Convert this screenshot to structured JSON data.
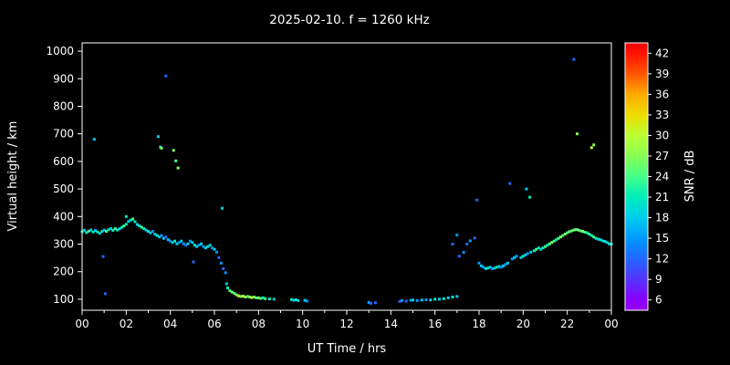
{
  "title": "2025-02-10. f = 1260 kHz",
  "chart_data": {
    "type": "scatter",
    "title": "2025-02-10. f = 1260 kHz",
    "xlabel": "UT Time / hrs",
    "ylabel": "Virtual height / km",
    "xlim": [
      0,
      24
    ],
    "ylim": [
      60,
      1030
    ],
    "xticks": [
      0,
      2,
      4,
      6,
      8,
      10,
      12,
      14,
      16,
      18,
      20,
      22,
      24
    ],
    "xtick_labels": [
      "00",
      "02",
      "04",
      "06",
      "08",
      "10",
      "12",
      "14",
      "16",
      "18",
      "20",
      "22",
      "00"
    ],
    "xminor": [
      1,
      3,
      5,
      7,
      9,
      11,
      13,
      15,
      17,
      19,
      21,
      23
    ],
    "yticks": [
      100,
      200,
      300,
      400,
      500,
      600,
      700,
      800,
      900,
      1000
    ],
    "background": "#000000",
    "axis_color": "#ffffff",
    "legend_position": "right-colorbar",
    "grid": false,
    "colorbar": {
      "label": "SNR / dB",
      "range": [
        4.5,
        43.5
      ],
      "ticks": [
        6,
        9,
        12,
        15,
        18,
        21,
        24,
        27,
        30,
        33,
        36,
        39,
        42
      ],
      "stops": [
        {
          "v": 4.5,
          "c": "#9900ee"
        },
        {
          "v": 6,
          "c": "#8800ff"
        },
        {
          "v": 9,
          "c": "#5533ff"
        },
        {
          "v": 12,
          "c": "#2266ff"
        },
        {
          "v": 15,
          "c": "#0099ff"
        },
        {
          "v": 18,
          "c": "#00ccee"
        },
        {
          "v": 21,
          "c": "#00eebb"
        },
        {
          "v": 24,
          "c": "#44ff88"
        },
        {
          "v": 27,
          "c": "#88ff55"
        },
        {
          "v": 30,
          "c": "#bbff33"
        },
        {
          "v": 33,
          "c": "#eedd00"
        },
        {
          "v": 36,
          "c": "#ffaa00"
        },
        {
          "v": 39,
          "c": "#ff5500"
        },
        {
          "v": 42,
          "c": "#ff1100"
        },
        {
          "v": 43.5,
          "c": "#ee0000"
        }
      ]
    },
    "points": [
      [
        0.0,
        345,
        21
      ],
      [
        0.1,
        350,
        18
      ],
      [
        0.2,
        342,
        21
      ],
      [
        0.3,
        347,
        24
      ],
      [
        0.4,
        351,
        18
      ],
      [
        0.5,
        344,
        21
      ],
      [
        0.55,
        680,
        18
      ],
      [
        0.6,
        349,
        18
      ],
      [
        0.7,
        344,
        21
      ],
      [
        0.8,
        339,
        18
      ],
      [
        0.9,
        346,
        21
      ],
      [
        0.95,
        255,
        12
      ],
      [
        1.05,
        120,
        12
      ],
      [
        1.0,
        351,
        18
      ],
      [
        1.1,
        346,
        24
      ],
      [
        1.2,
        352,
        21
      ],
      [
        1.3,
        356,
        18
      ],
      [
        1.4,
        350,
        21
      ],
      [
        1.5,
        356,
        24
      ],
      [
        1.6,
        351,
        21
      ],
      [
        1.7,
        356,
        18
      ],
      [
        1.8,
        361,
        21
      ],
      [
        1.9,
        366,
        24
      ],
      [
        2.0,
        372,
        21
      ],
      [
        2.0,
        400,
        21
      ],
      [
        2.1,
        382,
        18
      ],
      [
        2.2,
        387,
        21
      ],
      [
        2.3,
        391,
        24
      ],
      [
        2.4,
        381,
        21
      ],
      [
        2.5,
        371,
        18
      ],
      [
        2.6,
        366,
        21
      ],
      [
        2.7,
        361,
        24
      ],
      [
        2.8,
        356,
        21
      ],
      [
        2.9,
        351,
        18
      ],
      [
        3.0,
        346,
        21
      ],
      [
        3.1,
        341,
        18
      ],
      [
        3.2,
        346,
        15
      ],
      [
        3.3,
        336,
        18
      ],
      [
        3.4,
        331,
        21
      ],
      [
        3.45,
        690,
        18
      ],
      [
        3.55,
        652,
        21
      ],
      [
        3.6,
        648,
        27
      ],
      [
        3.5,
        326,
        18
      ],
      [
        3.6,
        331,
        15
      ],
      [
        3.7,
        321,
        18
      ],
      [
        3.8,
        910,
        12
      ],
      [
        3.8,
        326,
        12
      ],
      [
        3.9,
        316,
        18
      ],
      [
        4.0,
        311,
        15
      ],
      [
        4.1,
        306,
        18
      ],
      [
        4.15,
        640,
        27
      ],
      [
        4.25,
        602,
        24
      ],
      [
        4.35,
        576,
        27
      ],
      [
        4.2,
        311,
        21
      ],
      [
        4.3,
        301,
        18
      ],
      [
        4.4,
        306,
        15
      ],
      [
        4.5,
        311,
        18
      ],
      [
        4.6,
        301,
        15
      ],
      [
        4.7,
        296,
        12
      ],
      [
        4.8,
        301,
        18
      ],
      [
        4.9,
        311,
        15
      ],
      [
        5.0,
        306,
        18
      ],
      [
        5.05,
        235,
        12
      ],
      [
        5.1,
        296,
        21
      ],
      [
        5.2,
        291,
        18
      ],
      [
        5.3,
        296,
        15
      ],
      [
        5.4,
        301,
        18
      ],
      [
        5.5,
        291,
        15
      ],
      [
        5.6,
        286,
        18
      ],
      [
        5.7,
        291,
        21
      ],
      [
        5.8,
        296,
        18
      ],
      [
        5.9,
        286,
        15
      ],
      [
        6.0,
        281,
        18
      ],
      [
        6.1,
        271,
        15
      ],
      [
        6.2,
        251,
        12
      ],
      [
        6.35,
        430,
        18
      ],
      [
        6.3,
        231,
        15
      ],
      [
        6.4,
        211,
        12
      ],
      [
        6.5,
        196,
        15
      ],
      [
        6.55,
        156,
        18
      ],
      [
        6.6,
        141,
        21
      ],
      [
        6.7,
        131,
        24
      ],
      [
        6.8,
        126,
        27
      ],
      [
        6.9,
        121,
        24
      ],
      [
        7.0,
        116,
        27
      ],
      [
        7.1,
        112,
        30
      ],
      [
        7.2,
        110,
        27
      ],
      [
        7.3,
        111,
        30
      ],
      [
        7.4,
        108,
        27
      ],
      [
        7.5,
        110,
        24
      ],
      [
        7.6,
        108,
        27
      ],
      [
        7.7,
        106,
        30
      ],
      [
        7.8,
        108,
        27
      ],
      [
        7.9,
        105,
        24
      ],
      [
        8.0,
        105,
        27
      ],
      [
        8.1,
        103,
        24
      ],
      [
        8.2,
        105,
        21
      ],
      [
        8.3,
        102,
        24
      ],
      [
        8.5,
        101,
        21
      ],
      [
        8.7,
        100,
        18
      ],
      [
        9.5,
        99,
        21
      ],
      [
        9.6,
        96,
        18
      ],
      [
        9.7,
        98,
        21
      ],
      [
        9.8,
        95,
        18
      ],
      [
        10.1,
        96,
        18
      ],
      [
        10.2,
        93,
        15
      ],
      [
        13.0,
        88,
        15
      ],
      [
        13.1,
        85,
        12
      ],
      [
        13.3,
        87,
        12
      ],
      [
        14.4,
        92,
        12
      ],
      [
        14.5,
        95,
        15
      ],
      [
        14.7,
        93,
        12
      ],
      [
        14.9,
        96,
        15
      ],
      [
        15.0,
        97,
        18
      ],
      [
        15.2,
        95,
        15
      ],
      [
        15.4,
        97,
        18
      ],
      [
        15.6,
        98,
        15
      ],
      [
        15.8,
        97,
        18
      ],
      [
        16.0,
        100,
        21
      ],
      [
        16.2,
        100,
        18
      ],
      [
        16.4,
        102,
        21
      ],
      [
        16.6,
        105,
        18
      ],
      [
        16.8,
        108,
        21
      ],
      [
        17.0,
        110,
        18
      ],
      [
        16.8,
        300,
        12
      ],
      [
        17.0,
        333,
        15
      ],
      [
        17.1,
        256,
        12
      ],
      [
        17.3,
        270,
        15
      ],
      [
        17.45,
        300,
        12
      ],
      [
        17.6,
        312,
        15
      ],
      [
        17.8,
        322,
        12
      ],
      [
        17.9,
        460,
        12
      ],
      [
        18.0,
        231,
        15
      ],
      [
        18.1,
        221,
        18
      ],
      [
        18.2,
        216,
        15
      ],
      [
        18.3,
        211,
        18
      ],
      [
        18.4,
        213,
        21
      ],
      [
        18.5,
        216,
        18
      ],
      [
        18.6,
        211,
        15
      ],
      [
        18.7,
        213,
        18
      ],
      [
        18.8,
        216,
        21
      ],
      [
        18.9,
        219,
        18
      ],
      [
        19.0,
        216,
        15
      ],
      [
        19.1,
        221,
        18
      ],
      [
        19.2,
        226,
        15
      ],
      [
        19.3,
        231,
        18
      ],
      [
        19.4,
        520,
        12
      ],
      [
        19.5,
        246,
        15
      ],
      [
        19.6,
        251,
        18
      ],
      [
        19.7,
        256,
        15
      ],
      [
        19.9,
        251,
        18
      ],
      [
        20.0,
        256,
        21
      ],
      [
        20.1,
        261,
        18
      ],
      [
        20.15,
        500,
        18
      ],
      [
        20.2,
        266,
        15
      ],
      [
        20.3,
        470,
        21
      ],
      [
        20.35,
        271,
        18
      ],
      [
        20.5,
        276,
        21
      ],
      [
        20.6,
        281,
        24
      ],
      [
        20.7,
        286,
        21
      ],
      [
        20.8,
        281,
        18
      ],
      [
        20.9,
        286,
        21
      ],
      [
        21.0,
        291,
        24
      ],
      [
        21.1,
        296,
        21
      ],
      [
        21.2,
        301,
        24
      ],
      [
        21.3,
        306,
        27
      ],
      [
        21.4,
        311,
        24
      ],
      [
        21.5,
        316,
        21
      ],
      [
        21.6,
        321,
        24
      ],
      [
        21.7,
        326,
        27
      ],
      [
        21.8,
        331,
        24
      ],
      [
        21.9,
        336,
        27
      ],
      [
        22.0,
        341,
        24
      ],
      [
        22.1,
        345,
        27
      ],
      [
        22.2,
        348,
        24
      ],
      [
        22.3,
        970,
        12
      ],
      [
        22.3,
        351,
        27
      ],
      [
        22.4,
        353,
        24
      ],
      [
        22.45,
        700,
        27
      ],
      [
        22.5,
        351,
        27
      ],
      [
        22.6,
        348,
        24
      ],
      [
        22.7,
        346,
        27
      ],
      [
        22.8,
        343,
        24
      ],
      [
        22.9,
        341,
        21
      ],
      [
        23.0,
        336,
        24
      ],
      [
        23.1,
        650,
        30
      ],
      [
        23.1,
        331,
        21
      ],
      [
        23.2,
        660,
        27
      ],
      [
        23.2,
        326,
        24
      ],
      [
        23.3,
        321,
        21
      ],
      [
        23.4,
        318,
        18
      ],
      [
        23.5,
        316,
        21
      ],
      [
        23.6,
        312,
        18
      ],
      [
        23.7,
        310,
        21
      ],
      [
        23.8,
        306,
        18
      ],
      [
        23.9,
        301,
        21
      ],
      [
        24.0,
        300,
        18
      ]
    ]
  }
}
